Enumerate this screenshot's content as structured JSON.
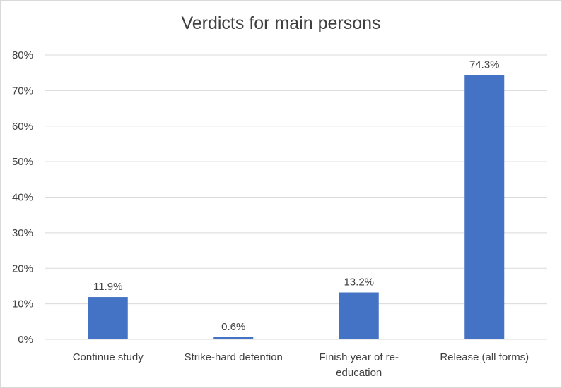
{
  "chart_data": {
    "type": "bar",
    "title": "Verdicts for main persons",
    "xlabel": "",
    "ylabel": "",
    "categories": [
      [
        "Continue study"
      ],
      [
        "Strike-hard detention"
      ],
      [
        "Finish year of re-",
        "education"
      ],
      [
        "Release (all forms)"
      ]
    ],
    "values": [
      11.9,
      0.6,
      13.2,
      74.3
    ],
    "data_labels": [
      "11.9%",
      "0.6%",
      "13.2%",
      "74.3%"
    ],
    "ylim": [
      0,
      80
    ],
    "yticks": [
      0,
      10,
      20,
      30,
      40,
      50,
      60,
      70,
      80
    ],
    "ytick_labels": [
      "0%",
      "10%",
      "20%",
      "30%",
      "40%",
      "50%",
      "60%",
      "70%",
      "80%"
    ],
    "grid": true,
    "legend": "none",
    "colors": {
      "bar": "#4472c4",
      "grid": "#d9d9d9",
      "text": "#404040"
    }
  }
}
